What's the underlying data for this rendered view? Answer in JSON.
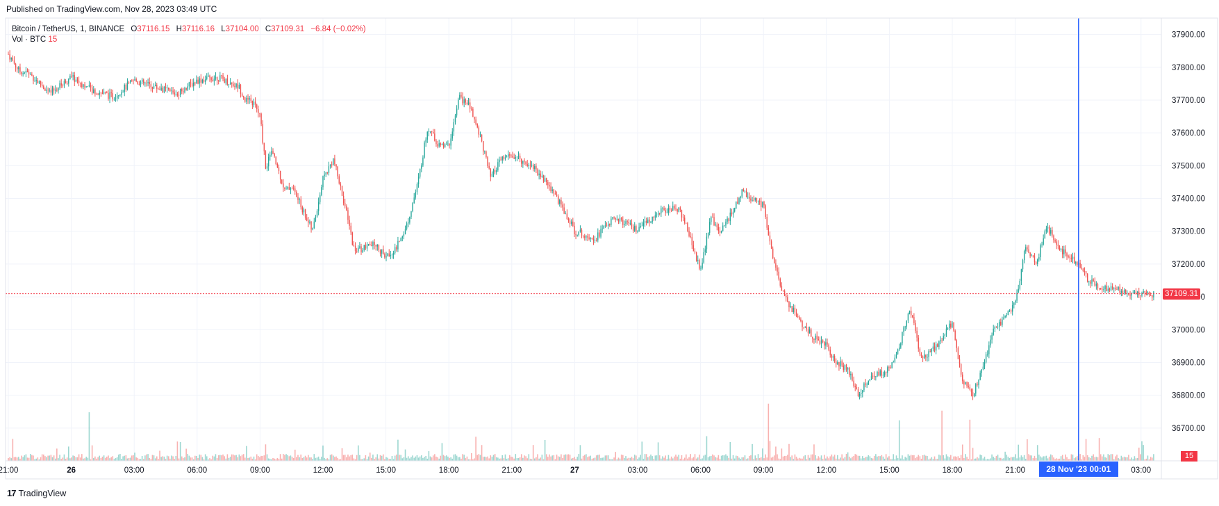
{
  "published": "Published on TradingView.com, Nov 28, 2023 03:49 UTC",
  "legend": {
    "symbol": "Bitcoin / TetherUS, 1, BINANCE",
    "o_label": "O",
    "o": "37116.15",
    "h_label": "H",
    "h": "37116.16",
    "l_label": "L",
    "l": "37104.00",
    "c_label": "C",
    "c": "37109.31",
    "change": "−6.84 (−0.02%)",
    "vol_label": "Vol · BTC",
    "vol_value": "15"
  },
  "last_price_badge": "37109.31",
  "volume_badge": "15",
  "crosshair_time_badge": "28 Nov '23  00:01",
  "footer": {
    "logo": "17",
    "brand": "TradingView"
  },
  "colors": {
    "up": "#26a69a",
    "down": "#ef5350",
    "crosshair": "#2962ff",
    "last": "#f23645",
    "grid": "#f0f3fa"
  },
  "chart_data": {
    "type": "candlestick",
    "title": "Bitcoin / TetherUS, 1, BINANCE",
    "ylim": [
      36600,
      37950
    ],
    "y_ticks": [
      "37900.00",
      "37800.00",
      "37700.00",
      "37600.00",
      "37500.00",
      "37400.00",
      "37300.00",
      "37200.00",
      "37100.00",
      "37000.00",
      "36900.00",
      "36800.00",
      "36700.00"
    ],
    "x_ticks": [
      "21:00",
      "26",
      "03:00",
      "06:00",
      "09:00",
      "12:00",
      "15:00",
      "18:00",
      "21:00",
      "27",
      "03:00",
      "06:00",
      "09:00",
      "12:00",
      "15:00",
      "18:00",
      "21:00",
      "03:00"
    ],
    "x_tick_hours": [
      0,
      3,
      6,
      9,
      12,
      15,
      18,
      21,
      24,
      27,
      30,
      33,
      36,
      39,
      42,
      45,
      48,
      54
    ],
    "bold_ticks": [
      "26",
      "27"
    ],
    "x_range_hours": [
      0,
      55
    ],
    "last_price": 37109.31,
    "crosshair_hour": 51.02,
    "path_hours": [
      0,
      0.5,
      1,
      1.5,
      2,
      3,
      4,
      5,
      6,
      7,
      8,
      9,
      10,
      11,
      11.3,
      11.7,
      12,
      12.3,
      12.5,
      12.8,
      13.2,
      13.5,
      14,
      14.5,
      15,
      15.5,
      16,
      16.5,
      17,
      17.5,
      18,
      18.5,
      19,
      19.5,
      20,
      20.5,
      21,
      21.5,
      22,
      22.5,
      23,
      23.5,
      24,
      25,
      26,
      27,
      28,
      28.5,
      29,
      30,
      31,
      32,
      32.5,
      33,
      33.5,
      34,
      35,
      36,
      36.5,
      37,
      38,
      39,
      39.5,
      40,
      40.5,
      41,
      42,
      42.5,
      43,
      43.5,
      44,
      45,
      45.5,
      46,
      47,
      48,
      48.5,
      49,
      49.5,
      50,
      51,
      51.5,
      52,
      53,
      54,
      55
    ],
    "path_prices": [
      37840,
      37790,
      37780,
      37750,
      37720,
      37770,
      37730,
      37710,
      37760,
      37740,
      37720,
      37760,
      37770,
      37740,
      37700,
      37690,
      37650,
      37480,
      37550,
      37500,
      37420,
      37440,
      37370,
      37300,
      37460,
      37520,
      37390,
      37240,
      37250,
      37260,
      37220,
      37250,
      37320,
      37440,
      37620,
      37560,
      37560,
      37710,
      37680,
      37590,
      37460,
      37520,
      37530,
      37500,
      37420,
      37300,
      37280,
      37320,
      37340,
      37300,
      37360,
      37370,
      37280,
      37180,
      37340,
      37300,
      37420,
      37380,
      37200,
      37100,
      37000,
      36950,
      36900,
      36880,
      36800,
      36850,
      36880,
      36960,
      37060,
      36920,
      36930,
      37020,
      36840,
      36800,
      37000,
      37080,
      37260,
      37200,
      37320,
      37250,
      37200,
      37150,
      37130,
      37120,
      37109.31,
      37109.31
    ],
    "volume_scale_note": "relative bar heights"
  }
}
